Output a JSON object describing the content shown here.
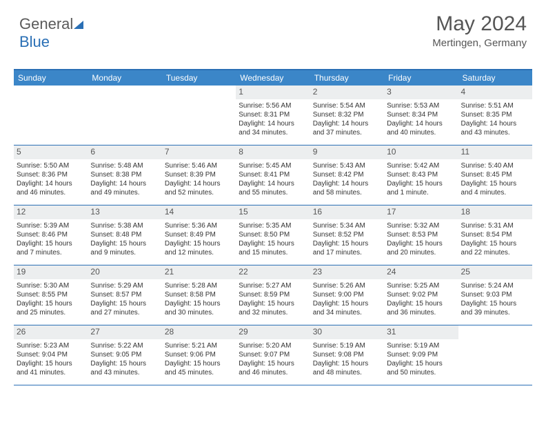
{
  "logo": {
    "text_gray": "General",
    "text_blue": "Blue"
  },
  "header": {
    "title": "May 2024",
    "location": "Mertingen, Germany"
  },
  "colors": {
    "header_bg": "#3b86c8",
    "border": "#2a6fb5",
    "daynum_bg": "#eceeef",
    "text": "#333333",
    "muted": "#555555"
  },
  "days_of_week": [
    "Sunday",
    "Monday",
    "Tuesday",
    "Wednesday",
    "Thursday",
    "Friday",
    "Saturday"
  ],
  "weeks": [
    [
      {
        "n": "",
        "sr": "",
        "ss": "",
        "dl": ""
      },
      {
        "n": "",
        "sr": "",
        "ss": "",
        "dl": ""
      },
      {
        "n": "",
        "sr": "",
        "ss": "",
        "dl": ""
      },
      {
        "n": "1",
        "sr": "Sunrise: 5:56 AM",
        "ss": "Sunset: 8:31 PM",
        "dl": "Daylight: 14 hours and 34 minutes."
      },
      {
        "n": "2",
        "sr": "Sunrise: 5:54 AM",
        "ss": "Sunset: 8:32 PM",
        "dl": "Daylight: 14 hours and 37 minutes."
      },
      {
        "n": "3",
        "sr": "Sunrise: 5:53 AM",
        "ss": "Sunset: 8:34 PM",
        "dl": "Daylight: 14 hours and 40 minutes."
      },
      {
        "n": "4",
        "sr": "Sunrise: 5:51 AM",
        "ss": "Sunset: 8:35 PM",
        "dl": "Daylight: 14 hours and 43 minutes."
      }
    ],
    [
      {
        "n": "5",
        "sr": "Sunrise: 5:50 AM",
        "ss": "Sunset: 8:36 PM",
        "dl": "Daylight: 14 hours and 46 minutes."
      },
      {
        "n": "6",
        "sr": "Sunrise: 5:48 AM",
        "ss": "Sunset: 8:38 PM",
        "dl": "Daylight: 14 hours and 49 minutes."
      },
      {
        "n": "7",
        "sr": "Sunrise: 5:46 AM",
        "ss": "Sunset: 8:39 PM",
        "dl": "Daylight: 14 hours and 52 minutes."
      },
      {
        "n": "8",
        "sr": "Sunrise: 5:45 AM",
        "ss": "Sunset: 8:41 PM",
        "dl": "Daylight: 14 hours and 55 minutes."
      },
      {
        "n": "9",
        "sr": "Sunrise: 5:43 AM",
        "ss": "Sunset: 8:42 PM",
        "dl": "Daylight: 14 hours and 58 minutes."
      },
      {
        "n": "10",
        "sr": "Sunrise: 5:42 AM",
        "ss": "Sunset: 8:43 PM",
        "dl": "Daylight: 15 hours and 1 minute."
      },
      {
        "n": "11",
        "sr": "Sunrise: 5:40 AM",
        "ss": "Sunset: 8:45 PM",
        "dl": "Daylight: 15 hours and 4 minutes."
      }
    ],
    [
      {
        "n": "12",
        "sr": "Sunrise: 5:39 AM",
        "ss": "Sunset: 8:46 PM",
        "dl": "Daylight: 15 hours and 7 minutes."
      },
      {
        "n": "13",
        "sr": "Sunrise: 5:38 AM",
        "ss": "Sunset: 8:48 PM",
        "dl": "Daylight: 15 hours and 9 minutes."
      },
      {
        "n": "14",
        "sr": "Sunrise: 5:36 AM",
        "ss": "Sunset: 8:49 PM",
        "dl": "Daylight: 15 hours and 12 minutes."
      },
      {
        "n": "15",
        "sr": "Sunrise: 5:35 AM",
        "ss": "Sunset: 8:50 PM",
        "dl": "Daylight: 15 hours and 15 minutes."
      },
      {
        "n": "16",
        "sr": "Sunrise: 5:34 AM",
        "ss": "Sunset: 8:52 PM",
        "dl": "Daylight: 15 hours and 17 minutes."
      },
      {
        "n": "17",
        "sr": "Sunrise: 5:32 AM",
        "ss": "Sunset: 8:53 PM",
        "dl": "Daylight: 15 hours and 20 minutes."
      },
      {
        "n": "18",
        "sr": "Sunrise: 5:31 AM",
        "ss": "Sunset: 8:54 PM",
        "dl": "Daylight: 15 hours and 22 minutes."
      }
    ],
    [
      {
        "n": "19",
        "sr": "Sunrise: 5:30 AM",
        "ss": "Sunset: 8:55 PM",
        "dl": "Daylight: 15 hours and 25 minutes."
      },
      {
        "n": "20",
        "sr": "Sunrise: 5:29 AM",
        "ss": "Sunset: 8:57 PM",
        "dl": "Daylight: 15 hours and 27 minutes."
      },
      {
        "n": "21",
        "sr": "Sunrise: 5:28 AM",
        "ss": "Sunset: 8:58 PM",
        "dl": "Daylight: 15 hours and 30 minutes."
      },
      {
        "n": "22",
        "sr": "Sunrise: 5:27 AM",
        "ss": "Sunset: 8:59 PM",
        "dl": "Daylight: 15 hours and 32 minutes."
      },
      {
        "n": "23",
        "sr": "Sunrise: 5:26 AM",
        "ss": "Sunset: 9:00 PM",
        "dl": "Daylight: 15 hours and 34 minutes."
      },
      {
        "n": "24",
        "sr": "Sunrise: 5:25 AM",
        "ss": "Sunset: 9:02 PM",
        "dl": "Daylight: 15 hours and 36 minutes."
      },
      {
        "n": "25",
        "sr": "Sunrise: 5:24 AM",
        "ss": "Sunset: 9:03 PM",
        "dl": "Daylight: 15 hours and 39 minutes."
      }
    ],
    [
      {
        "n": "26",
        "sr": "Sunrise: 5:23 AM",
        "ss": "Sunset: 9:04 PM",
        "dl": "Daylight: 15 hours and 41 minutes."
      },
      {
        "n": "27",
        "sr": "Sunrise: 5:22 AM",
        "ss": "Sunset: 9:05 PM",
        "dl": "Daylight: 15 hours and 43 minutes."
      },
      {
        "n": "28",
        "sr": "Sunrise: 5:21 AM",
        "ss": "Sunset: 9:06 PM",
        "dl": "Daylight: 15 hours and 45 minutes."
      },
      {
        "n": "29",
        "sr": "Sunrise: 5:20 AM",
        "ss": "Sunset: 9:07 PM",
        "dl": "Daylight: 15 hours and 46 minutes."
      },
      {
        "n": "30",
        "sr": "Sunrise: 5:19 AM",
        "ss": "Sunset: 9:08 PM",
        "dl": "Daylight: 15 hours and 48 minutes."
      },
      {
        "n": "31",
        "sr": "Sunrise: 5:19 AM",
        "ss": "Sunset: 9:09 PM",
        "dl": "Daylight: 15 hours and 50 minutes."
      },
      {
        "n": "",
        "sr": "",
        "ss": "",
        "dl": ""
      }
    ]
  ]
}
